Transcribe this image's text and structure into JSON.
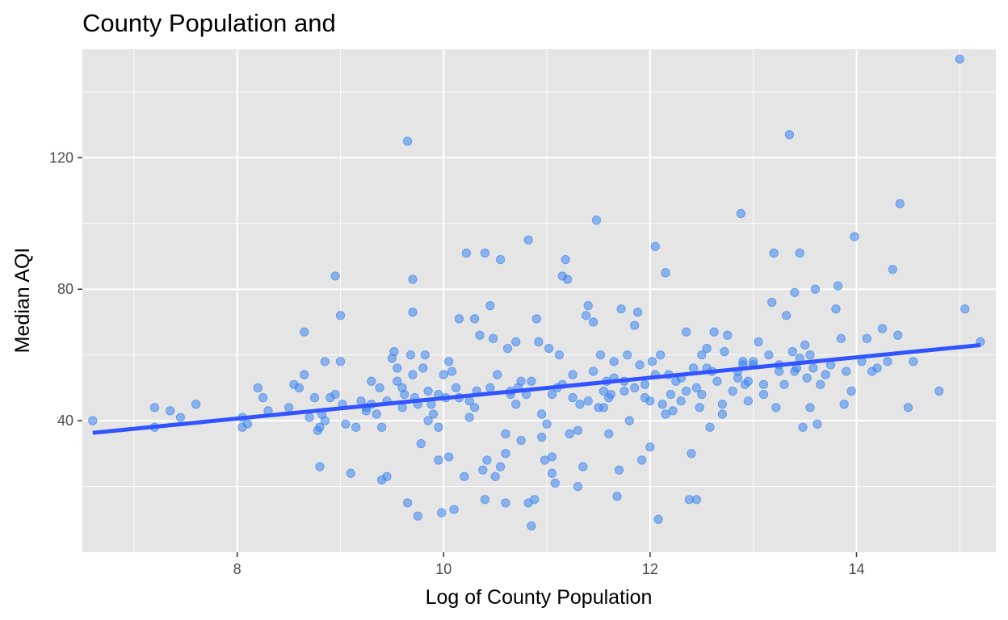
{
  "chart_data": {
    "type": "scatter",
    "title": "County Population and",
    "xlabel": "Log of County Population",
    "ylabel": "Median AQI",
    "xlim": [
      6.5,
      15.35
    ],
    "ylim": [
      0,
      153
    ],
    "x_ticks": [
      8,
      10,
      12,
      14
    ],
    "y_ticks": [
      40,
      80,
      120
    ],
    "grid": true,
    "legend": "none",
    "colors": {
      "panel": "#e5e5e5",
      "grid": "#ffffff",
      "points": "#3d85f0",
      "trend": "#3254ff",
      "tick_text": "#4d4d4d"
    },
    "trend_line": {
      "x": [
        6.6,
        15.2
      ],
      "y": [
        36.3,
        63.0
      ]
    },
    "points": [
      [
        6.6,
        40
      ],
      [
        7.2,
        44
      ],
      [
        7.2,
        38
      ],
      [
        7.35,
        43
      ],
      [
        7.45,
        41
      ],
      [
        7.6,
        45
      ],
      [
        8.05,
        38
      ],
      [
        8.1,
        39
      ],
      [
        8.05,
        41
      ],
      [
        8.2,
        50
      ],
      [
        8.25,
        47
      ],
      [
        8.3,
        43
      ],
      [
        8.5,
        44
      ],
      [
        8.55,
        51
      ],
      [
        8.6,
        50
      ],
      [
        8.65,
        54
      ],
      [
        8.65,
        67
      ],
      [
        8.7,
        41
      ],
      [
        8.75,
        47
      ],
      [
        8.78,
        37
      ],
      [
        8.8,
        38
      ],
      [
        8.8,
        26
      ],
      [
        8.82,
        42
      ],
      [
        8.85,
        58
      ],
      [
        8.85,
        40
      ],
      [
        8.9,
        47
      ],
      [
        8.95,
        48
      ],
      [
        8.95,
        84
      ],
      [
        9.0,
        72
      ],
      [
        9.0,
        58
      ],
      [
        9.02,
        45
      ],
      [
        9.05,
        39
      ],
      [
        9.1,
        24
      ],
      [
        9.15,
        38
      ],
      [
        9.2,
        46
      ],
      [
        9.25,
        44
      ],
      [
        9.3,
        45
      ],
      [
        9.3,
        52
      ],
      [
        9.35,
        42
      ],
      [
        9.38,
        50
      ],
      [
        9.4,
        38
      ],
      [
        9.4,
        22
      ],
      [
        9.45,
        23
      ],
      [
        9.5,
        59
      ],
      [
        9.52,
        61
      ],
      [
        9.55,
        56
      ],
      [
        9.55,
        52
      ],
      [
        9.6,
        44
      ],
      [
        9.6,
        50
      ],
      [
        9.62,
        48
      ],
      [
        9.65,
        15
      ],
      [
        9.68,
        60
      ],
      [
        9.7,
        73
      ],
      [
        9.7,
        83
      ],
      [
        9.7,
        54
      ],
      [
        9.72,
        47
      ],
      [
        9.75,
        11
      ],
      [
        9.78,
        33
      ],
      [
        9.8,
        56
      ],
      [
        9.82,
        60
      ],
      [
        9.85,
        49
      ],
      [
        9.88,
        45
      ],
      [
        9.9,
        42
      ],
      [
        9.95,
        38
      ],
      [
        9.95,
        28
      ],
      [
        9.98,
        12
      ],
      [
        10.0,
        54
      ],
      [
        10.02,
        47
      ],
      [
        10.05,
        58
      ],
      [
        10.05,
        29
      ],
      [
        10.08,
        55
      ],
      [
        10.1,
        13
      ],
      [
        10.12,
        50
      ],
      [
        10.15,
        71
      ],
      [
        10.2,
        23
      ],
      [
        10.22,
        91
      ],
      [
        10.25,
        41
      ],
      [
        10.3,
        71
      ],
      [
        10.32,
        49
      ],
      [
        10.35,
        66
      ],
      [
        10.38,
        25
      ],
      [
        10.4,
        16
      ],
      [
        10.4,
        91
      ],
      [
        10.42,
        28
      ],
      [
        10.45,
        75
      ],
      [
        10.48,
        65
      ],
      [
        10.5,
        23
      ],
      [
        10.52,
        54
      ],
      [
        10.55,
        26
      ],
      [
        10.55,
        89
      ],
      [
        10.6,
        15
      ],
      [
        10.6,
        36
      ],
      [
        10.62,
        62
      ],
      [
        10.65,
        48
      ],
      [
        10.7,
        64
      ],
      [
        10.72,
        50
      ],
      [
        10.75,
        34
      ],
      [
        10.8,
        48
      ],
      [
        10.82,
        95
      ],
      [
        10.82,
        15
      ],
      [
        10.85,
        8
      ],
      [
        10.88,
        16
      ],
      [
        10.9,
        71
      ],
      [
        10.92,
        64
      ],
      [
        10.95,
        35
      ],
      [
        10.98,
        28
      ],
      [
        11.0,
        39
      ],
      [
        11.02,
        62
      ],
      [
        11.05,
        29
      ],
      [
        11.05,
        24
      ],
      [
        11.08,
        21
      ],
      [
        11.1,
        50
      ],
      [
        11.12,
        60
      ],
      [
        11.15,
        84
      ],
      [
        11.18,
        89
      ],
      [
        11.2,
        83
      ],
      [
        11.22,
        36
      ],
      [
        11.25,
        54
      ],
      [
        11.3,
        20
      ],
      [
        11.32,
        45
      ],
      [
        11.35,
        26
      ],
      [
        11.38,
        72
      ],
      [
        11.4,
        75
      ],
      [
        11.45,
        70
      ],
      [
        11.48,
        101
      ],
      [
        11.5,
        44
      ],
      [
        11.52,
        60
      ],
      [
        11.55,
        49
      ],
      [
        11.58,
        52
      ],
      [
        11.6,
        36
      ],
      [
        11.62,
        48
      ],
      [
        11.65,
        58
      ],
      [
        11.68,
        17
      ],
      [
        11.7,
        25
      ],
      [
        11.72,
        74
      ],
      [
        11.75,
        52
      ],
      [
        11.78,
        60
      ],
      [
        11.8,
        40
      ],
      [
        11.85,
        69
      ],
      [
        11.88,
        73
      ],
      [
        11.9,
        57
      ],
      [
        11.92,
        28
      ],
      [
        11.95,
        47
      ],
      [
        12.0,
        32
      ],
      [
        12.02,
        58
      ],
      [
        12.05,
        93
      ],
      [
        12.08,
        10
      ],
      [
        12.1,
        60
      ],
      [
        12.12,
        45
      ],
      [
        12.15,
        85
      ],
      [
        12.18,
        54
      ],
      [
        12.2,
        48
      ],
      [
        12.22,
        43
      ],
      [
        12.25,
        52
      ],
      [
        12.3,
        46
      ],
      [
        12.35,
        67
      ],
      [
        12.38,
        16
      ],
      [
        12.4,
        30
      ],
      [
        12.42,
        56
      ],
      [
        12.45,
        16
      ],
      [
        12.48,
        44
      ],
      [
        12.5,
        48
      ],
      [
        12.55,
        62
      ],
      [
        12.58,
        38
      ],
      [
        12.6,
        55
      ],
      [
        12.62,
        67
      ],
      [
        12.65,
        52
      ],
      [
        12.7,
        42
      ],
      [
        12.72,
        61
      ],
      [
        12.75,
        66
      ],
      [
        12.8,
        49
      ],
      [
        12.85,
        55
      ],
      [
        12.88,
        103
      ],
      [
        12.9,
        58
      ],
      [
        12.92,
        51
      ],
      [
        12.95,
        46
      ],
      [
        13.0,
        57
      ],
      [
        13.05,
        64
      ],
      [
        13.1,
        48
      ],
      [
        13.15,
        60
      ],
      [
        13.18,
        76
      ],
      [
        13.2,
        91
      ],
      [
        13.22,
        44
      ],
      [
        13.25,
        55
      ],
      [
        13.3,
        51
      ],
      [
        13.32,
        72
      ],
      [
        13.35,
        127
      ],
      [
        13.38,
        61
      ],
      [
        13.4,
        79
      ],
      [
        13.42,
        56
      ],
      [
        13.45,
        91
      ],
      [
        13.48,
        38
      ],
      [
        13.5,
        63
      ],
      [
        13.52,
        53
      ],
      [
        13.55,
        44
      ],
      [
        13.58,
        56
      ],
      [
        13.6,
        80
      ],
      [
        13.62,
        39
      ],
      [
        13.65,
        51
      ],
      [
        13.7,
        54
      ],
      [
        13.75,
        57
      ],
      [
        13.8,
        74
      ],
      [
        13.82,
        81
      ],
      [
        13.85,
        65
      ],
      [
        13.88,
        45
      ],
      [
        13.9,
        55
      ],
      [
        13.95,
        49
      ],
      [
        13.98,
        96
      ],
      [
        14.05,
        58
      ],
      [
        14.1,
        65
      ],
      [
        14.15,
        55
      ],
      [
        14.2,
        56
      ],
      [
        14.25,
        68
      ],
      [
        14.3,
        58
      ],
      [
        14.35,
        86
      ],
      [
        14.4,
        66
      ],
      [
        14.42,
        106
      ],
      [
        14.5,
        44
      ],
      [
        14.55,
        58
      ],
      [
        14.8,
        49
      ],
      [
        15.0,
        150
      ],
      [
        15.05,
        74
      ],
      [
        15.2,
        64
      ],
      [
        9.65,
        125
      ],
      [
        10.6,
        30
      ],
      [
        10.75,
        52
      ],
      [
        11.3,
        37
      ],
      [
        11.55,
        44
      ],
      [
        11.75,
        49
      ],
      [
        12.15,
        42
      ],
      [
        12.5,
        60
      ],
      [
        12.7,
        45
      ],
      [
        13.1,
        51
      ],
      [
        9.85,
        40
      ],
      [
        10.3,
        44
      ],
      [
        10.95,
        42
      ],
      [
        11.4,
        46
      ],
      [
        11.85,
        50
      ],
      [
        12.3,
        53
      ],
      [
        12.9,
        57
      ],
      [
        13.45,
        59
      ],
      [
        10.15,
        47
      ],
      [
        10.65,
        49
      ],
      [
        11.15,
        51
      ],
      [
        11.65,
        53
      ],
      [
        12.05,
        54
      ],
      [
        12.55,
        56
      ],
      [
        13.0,
        58
      ],
      [
        13.55,
        60
      ],
      [
        9.45,
        46
      ],
      [
        9.95,
        48
      ],
      [
        10.45,
        50
      ],
      [
        10.85,
        52
      ],
      [
        11.25,
        47
      ],
      [
        11.45,
        55
      ],
      [
        11.95,
        51
      ],
      [
        12.35,
        49
      ],
      [
        12.85,
        53
      ],
      [
        13.25,
        57
      ],
      [
        9.25,
        43
      ],
      [
        9.75,
        45
      ],
      [
        10.25,
        46
      ],
      [
        10.7,
        45
      ],
      [
        11.05,
        48
      ],
      [
        11.6,
        47
      ],
      [
        12.0,
        46
      ],
      [
        12.45,
        50
      ],
      [
        12.95,
        52
      ],
      [
        13.4,
        55
      ]
    ]
  }
}
